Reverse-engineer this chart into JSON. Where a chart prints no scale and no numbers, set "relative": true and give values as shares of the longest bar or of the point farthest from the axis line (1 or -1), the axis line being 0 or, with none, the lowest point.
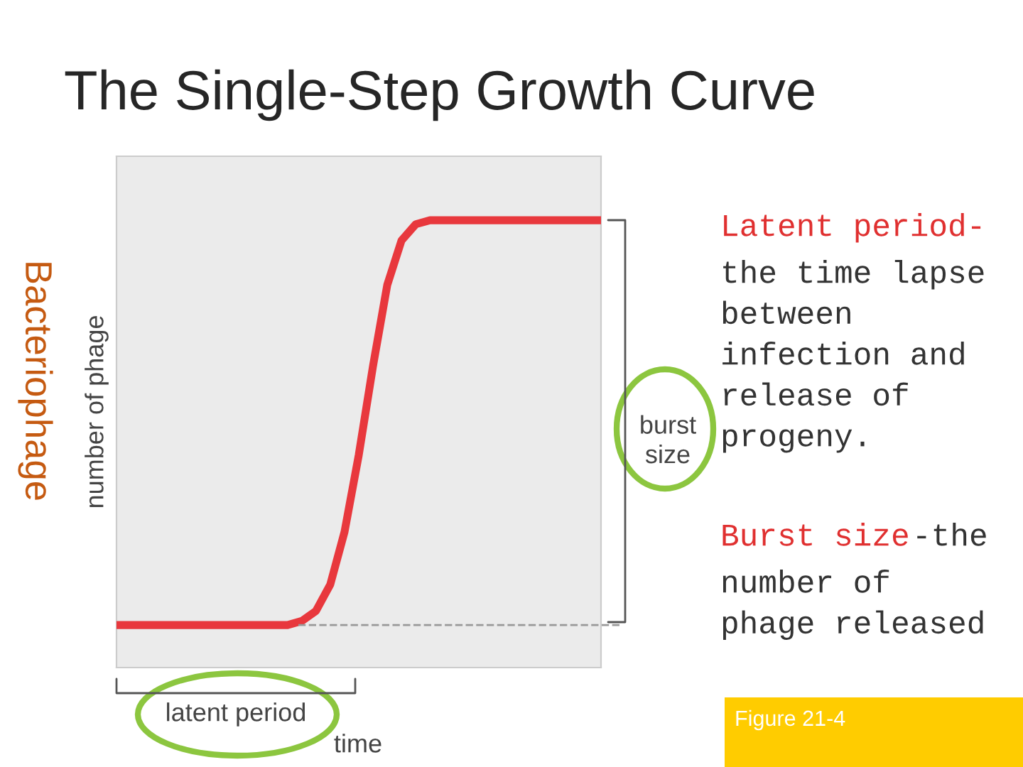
{
  "chart_data": {
    "type": "line",
    "title": "The Single-Step Growth Curve",
    "xlabel": "time",
    "ylabel": "number of phage",
    "relative": true,
    "categories": [
      null,
      null,
      null,
      null,
      null,
      null,
      null,
      null,
      null,
      null,
      null,
      null,
      null,
      null,
      null,
      null,
      null,
      null,
      null,
      null,
      null,
      null,
      null,
      null,
      null,
      null,
      null,
      null,
      null,
      null,
      null,
      null,
      null,
      null,
      null
    ],
    "series": [
      {
        "color": "#e8383d",
        "values": [
          0,
          0,
          0,
          0,
          0,
          0,
          0,
          0,
          0,
          0,
          0,
          0,
          0,
          0.01,
          0.035,
          0.1,
          0.23,
          0.42,
          0.64,
          0.84,
          0.95,
          0.99,
          1,
          1,
          1,
          1,
          1,
          1,
          1,
          1,
          1,
          1,
          1,
          1,
          1
        ]
      }
    ],
    "ref_lines": [
      {
        "axis": "y",
        "value": 0,
        "color": "#999999",
        "line_style": "dashed"
      }
    ],
    "annotations": [
      "Bacteriophage",
      "Latent period-",
      "the time lapse\nbetween\ninfection and\nrelease of\nprogeny.",
      "Burst size",
      "-the",
      "number of\nphage released",
      "latent period",
      "burst\nsize",
      "Figure 21-4"
    ]
  }
}
